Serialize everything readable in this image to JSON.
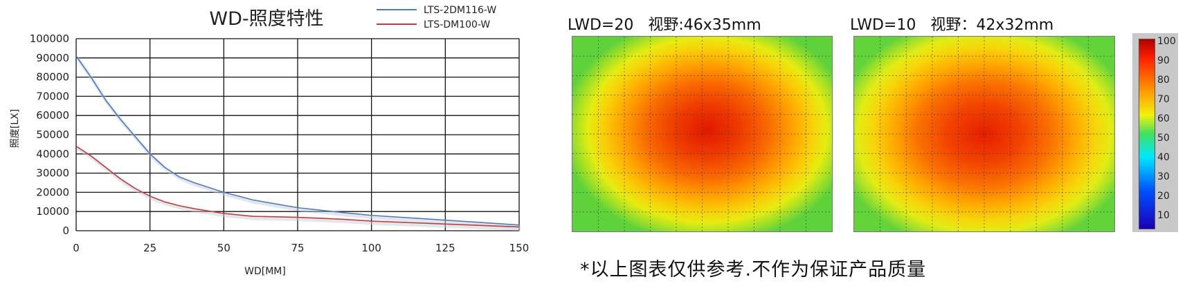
{
  "chart_data": {
    "type": "line",
    "title": "WD-照度特性",
    "xlabel": "WD[MM]",
    "ylabel": "照度[LX]",
    "xlim": [
      0,
      150
    ],
    "ylim": [
      0,
      100000
    ],
    "x_ticks": [
      "0",
      "25",
      "50",
      "75",
      "100",
      "125",
      "150"
    ],
    "y_ticks": [
      "0",
      "10000",
      "20000",
      "30000",
      "40000",
      "50000",
      "60000",
      "70000",
      "80000",
      "90000",
      "100000"
    ],
    "grid": true,
    "legend_position": "top-right",
    "series": [
      {
        "name": "LTS-2DM116-W",
        "color": "#4a7cc2",
        "x": [
          0,
          5,
          10,
          15,
          20,
          25,
          30,
          35,
          40,
          50,
          60,
          75,
          90,
          100,
          125,
          150
        ],
        "y": [
          91000,
          80000,
          68000,
          58000,
          49000,
          40000,
          33000,
          28000,
          25000,
          20000,
          16000,
          12000,
          9500,
          8000,
          5500,
          3000
        ]
      },
      {
        "name": "LTS-DM100-W",
        "color": "#c43b3b",
        "x": [
          0,
          5,
          10,
          15,
          20,
          25,
          30,
          35,
          40,
          50,
          60,
          75,
          90,
          100,
          125,
          150
        ],
        "y": [
          44000,
          39000,
          33000,
          27000,
          22000,
          18000,
          15000,
          13000,
          11500,
          9000,
          7500,
          7000,
          6000,
          5000,
          3500,
          2000
        ]
      }
    ]
  },
  "heatmaps": [
    {
      "title": "LWD=20   视野:46x35mm"
    },
    {
      "title": "LWD=10   视野：42x32mm"
    }
  ],
  "colorbar": {
    "labels": [
      "100",
      "90",
      "80",
      "70",
      "60",
      "50",
      "40",
      "30",
      "20",
      "10"
    ]
  },
  "note": "*以上图表仅供参考.不作为保证产品质量"
}
